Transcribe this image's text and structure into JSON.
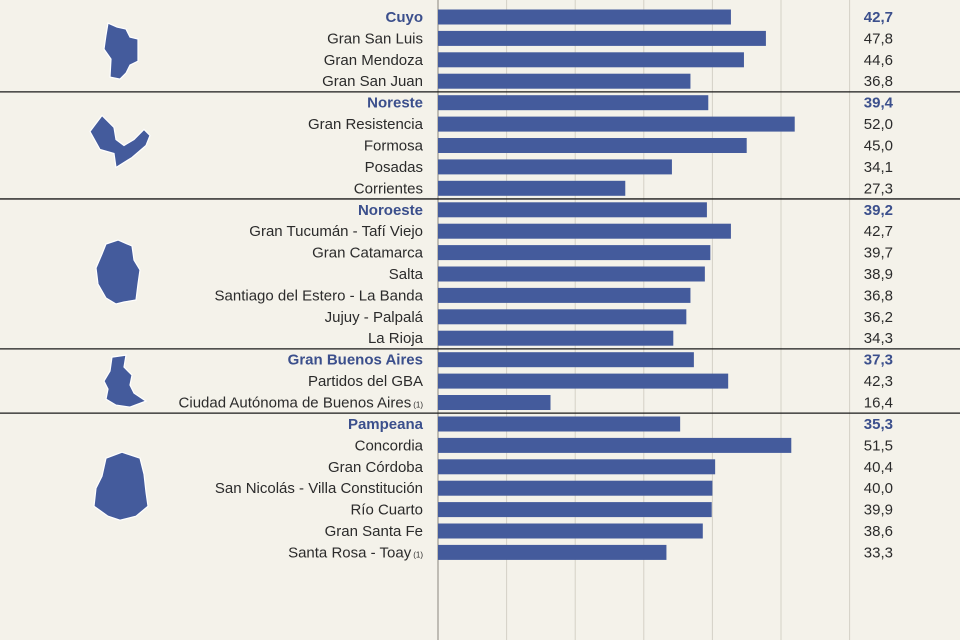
{
  "colors": {
    "bar": "#445b9c",
    "region_title": "#3b4f8c",
    "text": "#2b2b2b",
    "background": "#f4f2ea",
    "grid": "#d4d1c6",
    "divider": "#1a1a1a"
  },
  "chart_data": {
    "type": "bar",
    "orientation": "horizontal",
    "grid": true,
    "xlim": [
      0,
      60
    ],
    "groups": [
      {
        "name": "Cuyo",
        "value": 42.7,
        "value_label": "42,7",
        "icon": "cuyo-map-icon",
        "items": [
          {
            "name": "Gran San Luis",
            "value": 47.8,
            "value_label": "47,8"
          },
          {
            "name": "Gran Mendoza",
            "value": 44.6,
            "value_label": "44,6"
          },
          {
            "name": "Gran San Juan",
            "value": 36.8,
            "value_label": "36,8"
          }
        ]
      },
      {
        "name": "Noreste",
        "value": 39.4,
        "value_label": "39,4",
        "icon": "noreste-map-icon",
        "items": [
          {
            "name": "Gran Resistencia",
            "value": 52.0,
            "value_label": "52,0"
          },
          {
            "name": "Formosa",
            "value": 45.0,
            "value_label": "45,0"
          },
          {
            "name": "Posadas",
            "value": 34.1,
            "value_label": "34,1"
          },
          {
            "name": "Corrientes",
            "value": 27.3,
            "value_label": "27,3"
          }
        ]
      },
      {
        "name": "Noroeste",
        "value": 39.2,
        "value_label": "39,2",
        "icon": "noroeste-map-icon",
        "items": [
          {
            "name": "Gran Tucumán - Tafí Viejo",
            "value": 42.7,
            "value_label": "42,7"
          },
          {
            "name": "Gran Catamarca",
            "value": 39.7,
            "value_label": "39,7"
          },
          {
            "name": "Salta",
            "value": 38.9,
            "value_label": "38,9"
          },
          {
            "name": "Santiago del Estero - La Banda",
            "value": 36.8,
            "value_label": "36,8"
          },
          {
            "name": "Jujuy -  Palpalá",
            "value": 36.2,
            "value_label": "36,2"
          },
          {
            "name": "La Rioja",
            "value": 34.3,
            "value_label": "34,3"
          }
        ]
      },
      {
        "name": "Gran Buenos Aires",
        "value": 37.3,
        "value_label": "37,3",
        "icon": "gran-buenos-aires-map-icon",
        "items": [
          {
            "name": "Partidos del GBA",
            "value": 42.3,
            "value_label": "42,3"
          },
          {
            "name": "Ciudad Autónoma de Buenos Aires",
            "note": "(1)",
            "value": 16.4,
            "value_label": "16,4"
          }
        ]
      },
      {
        "name": "Pampeana",
        "value": 35.3,
        "value_label": "35,3",
        "icon": "pampeana-map-icon",
        "items": [
          {
            "name": "Concordia",
            "value": 51.5,
            "value_label": "51,5"
          },
          {
            "name": "Gran Córdoba",
            "value": 40.4,
            "value_label": "40,4"
          },
          {
            "name": "San Nicolás - Villa Constitución",
            "value": 40.0,
            "value_label": "40,0"
          },
          {
            "name": "Río Cuarto",
            "value": 39.9,
            "value_label": "39,9"
          },
          {
            "name": "Gran Santa Fe",
            "value": 38.6,
            "value_label": "38,6"
          },
          {
            "name": "Santa Rosa - Toay",
            "note": "(1)",
            "value": 33.3,
            "value_label": "33,3"
          }
        ]
      }
    ]
  }
}
